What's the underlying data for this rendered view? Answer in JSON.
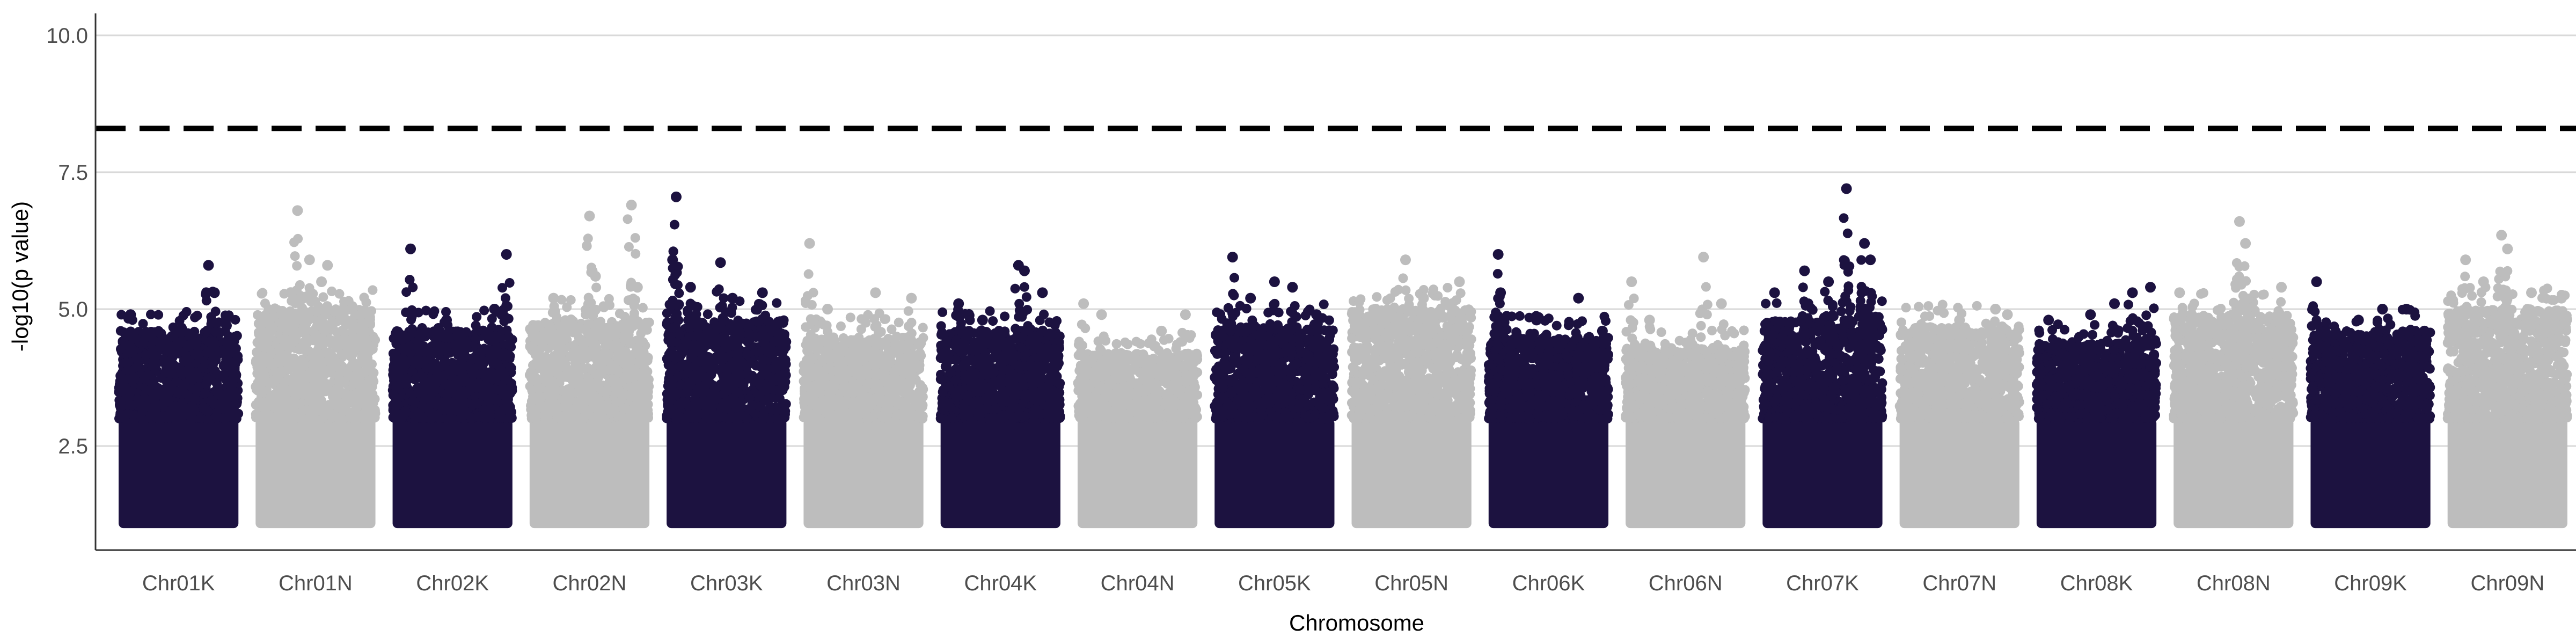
{
  "chart_data": {
    "type": "scatter",
    "subtype": "manhattan",
    "title": "",
    "xlabel": "Chromosome",
    "ylabel": "-log10(p value)",
    "ylim": [
      0.6,
      10.4
    ],
    "yticks": [
      2.5,
      5.0,
      7.5,
      10.0
    ],
    "ytick_labels": [
      "2.5",
      "5.0",
      "7.5",
      "10.0"
    ],
    "categories": [
      "Chr01K",
      "Chr01N",
      "Chr02K",
      "Chr02N",
      "Chr03K",
      "Chr03N",
      "Chr04K",
      "Chr04N",
      "Chr05K",
      "Chr05N",
      "Chr06K",
      "Chr06N",
      "Chr07K",
      "Chr07N",
      "Chr08K",
      "Chr08N",
      "Chr09K",
      "Chr09N"
    ],
    "threshold": 8.3,
    "threshold_style": "dashed",
    "grid": "horizontal-major",
    "legend": "none",
    "colors": {
      "odd": "#1c1240",
      "even": "#bdbdbd",
      "threshold": "#000000",
      "grid": "#d9d9d9"
    },
    "baseline_min": 1.0,
    "chromosomes": [
      {
        "name": "Chr01K",
        "base_max": 4.2,
        "peaks": [
          [
            0.1,
            4.9
          ],
          [
            0.35,
            4.4
          ],
          [
            0.75,
            5.8
          ],
          [
            0.8,
            5.3
          ],
          [
            0.9,
            4.7
          ]
        ]
      },
      {
        "name": "Chr01N",
        "base_max": 4.6,
        "peaks": [
          [
            0.35,
            6.8
          ],
          [
            0.45,
            5.9
          ],
          [
            0.55,
            5.5
          ],
          [
            0.6,
            5.8
          ],
          [
            0.3,
            5.3
          ]
        ]
      },
      {
        "name": "Chr02K",
        "base_max": 4.2,
        "peaks": [
          [
            0.15,
            6.1
          ],
          [
            0.45,
            4.8
          ],
          [
            0.85,
            5.0
          ],
          [
            0.95,
            6.0
          ]
        ]
      },
      {
        "name": "Chr02N",
        "base_max": 4.4,
        "peaks": [
          [
            0.2,
            5.2
          ],
          [
            0.5,
            6.7
          ],
          [
            0.55,
            5.6
          ],
          [
            0.85,
            6.9
          ],
          [
            0.9,
            5.4
          ]
        ]
      },
      {
        "name": "Chr03K",
        "base_max": 4.4,
        "peaks": [
          [
            0.05,
            5.9
          ],
          [
            0.08,
            7.05
          ],
          [
            0.2,
            5.4
          ],
          [
            0.45,
            5.85
          ],
          [
            0.55,
            5.2
          ],
          [
            0.8,
            5.3
          ]
        ]
      },
      {
        "name": "Chr03N",
        "base_max": 4.1,
        "peaks": [
          [
            0.05,
            6.2
          ],
          [
            0.2,
            5.0
          ],
          [
            0.6,
            5.3
          ],
          [
            0.9,
            5.2
          ]
        ]
      },
      {
        "name": "Chr04K",
        "base_max": 4.2,
        "peaks": [
          [
            0.15,
            5.1
          ],
          [
            0.35,
            4.8
          ],
          [
            0.65,
            5.8
          ],
          [
            0.7,
            5.7
          ],
          [
            0.85,
            5.3
          ]
        ]
      },
      {
        "name": "Chr04N",
        "base_max": 3.8,
        "peaks": [
          [
            0.05,
            5.1
          ],
          [
            0.2,
            4.9
          ],
          [
            0.7,
            4.6
          ],
          [
            0.9,
            4.9
          ]
        ]
      },
      {
        "name": "Chr05K",
        "base_max": 4.3,
        "peaks": [
          [
            0.15,
            5.95
          ],
          [
            0.3,
            5.2
          ],
          [
            0.5,
            5.5
          ],
          [
            0.65,
            5.4
          ],
          [
            0.85,
            4.9
          ]
        ]
      },
      {
        "name": "Chr05N",
        "base_max": 4.6,
        "peaks": [
          [
            0.2,
            5.0
          ],
          [
            0.45,
            5.9
          ],
          [
            0.6,
            5.2
          ],
          [
            0.9,
            5.5
          ]
        ]
      },
      {
        "name": "Chr06K",
        "base_max": 4.1,
        "peaks": [
          [
            0.08,
            6.0
          ],
          [
            0.1,
            5.3
          ],
          [
            0.4,
            4.8
          ],
          [
            0.75,
            5.2
          ],
          [
            0.95,
            4.6
          ]
        ]
      },
      {
        "name": "Chr06N",
        "base_max": 3.9,
        "peaks": [
          [
            0.05,
            5.5
          ],
          [
            0.2,
            4.8
          ],
          [
            0.65,
            5.95
          ],
          [
            0.8,
            5.1
          ]
        ]
      },
      {
        "name": "Chr07K",
        "base_max": 4.4,
        "peaks": [
          [
            0.1,
            5.3
          ],
          [
            0.35,
            5.7
          ],
          [
            0.55,
            5.5
          ],
          [
            0.7,
            7.2
          ],
          [
            0.85,
            6.2
          ],
          [
            0.9,
            5.9
          ]
        ]
      },
      {
        "name": "Chr07N",
        "base_max": 4.3,
        "peaks": [
          [
            0.2,
            4.6
          ],
          [
            0.5,
            4.8
          ],
          [
            0.8,
            5.0
          ],
          [
            0.9,
            4.9
          ]
        ]
      },
      {
        "name": "Chr08K",
        "base_max": 4.0,
        "peaks": [
          [
            0.1,
            4.8
          ],
          [
            0.45,
            4.9
          ],
          [
            0.65,
            5.1
          ],
          [
            0.8,
            5.3
          ],
          [
            0.95,
            5.4
          ]
        ]
      },
      {
        "name": "Chr08N",
        "base_max": 4.5,
        "peaks": [
          [
            0.05,
            5.3
          ],
          [
            0.15,
            4.9
          ],
          [
            0.55,
            6.6
          ],
          [
            0.6,
            6.2
          ],
          [
            0.9,
            5.4
          ]
        ]
      },
      {
        "name": "Chr09K",
        "base_max": 4.2,
        "peaks": [
          [
            0.05,
            5.5
          ],
          [
            0.4,
            4.8
          ],
          [
            0.6,
            5.0
          ],
          [
            0.8,
            5.0
          ],
          [
            0.95,
            4.6
          ]
        ]
      },
      {
        "name": "Chr09N",
        "base_max": 4.6,
        "peaks": [
          [
            0.15,
            5.9
          ],
          [
            0.3,
            5.5
          ],
          [
            0.45,
            6.35
          ],
          [
            0.5,
            6.1
          ],
          [
            0.7,
            5.3
          ],
          [
            0.95,
            5.2
          ]
        ]
      }
    ]
  }
}
